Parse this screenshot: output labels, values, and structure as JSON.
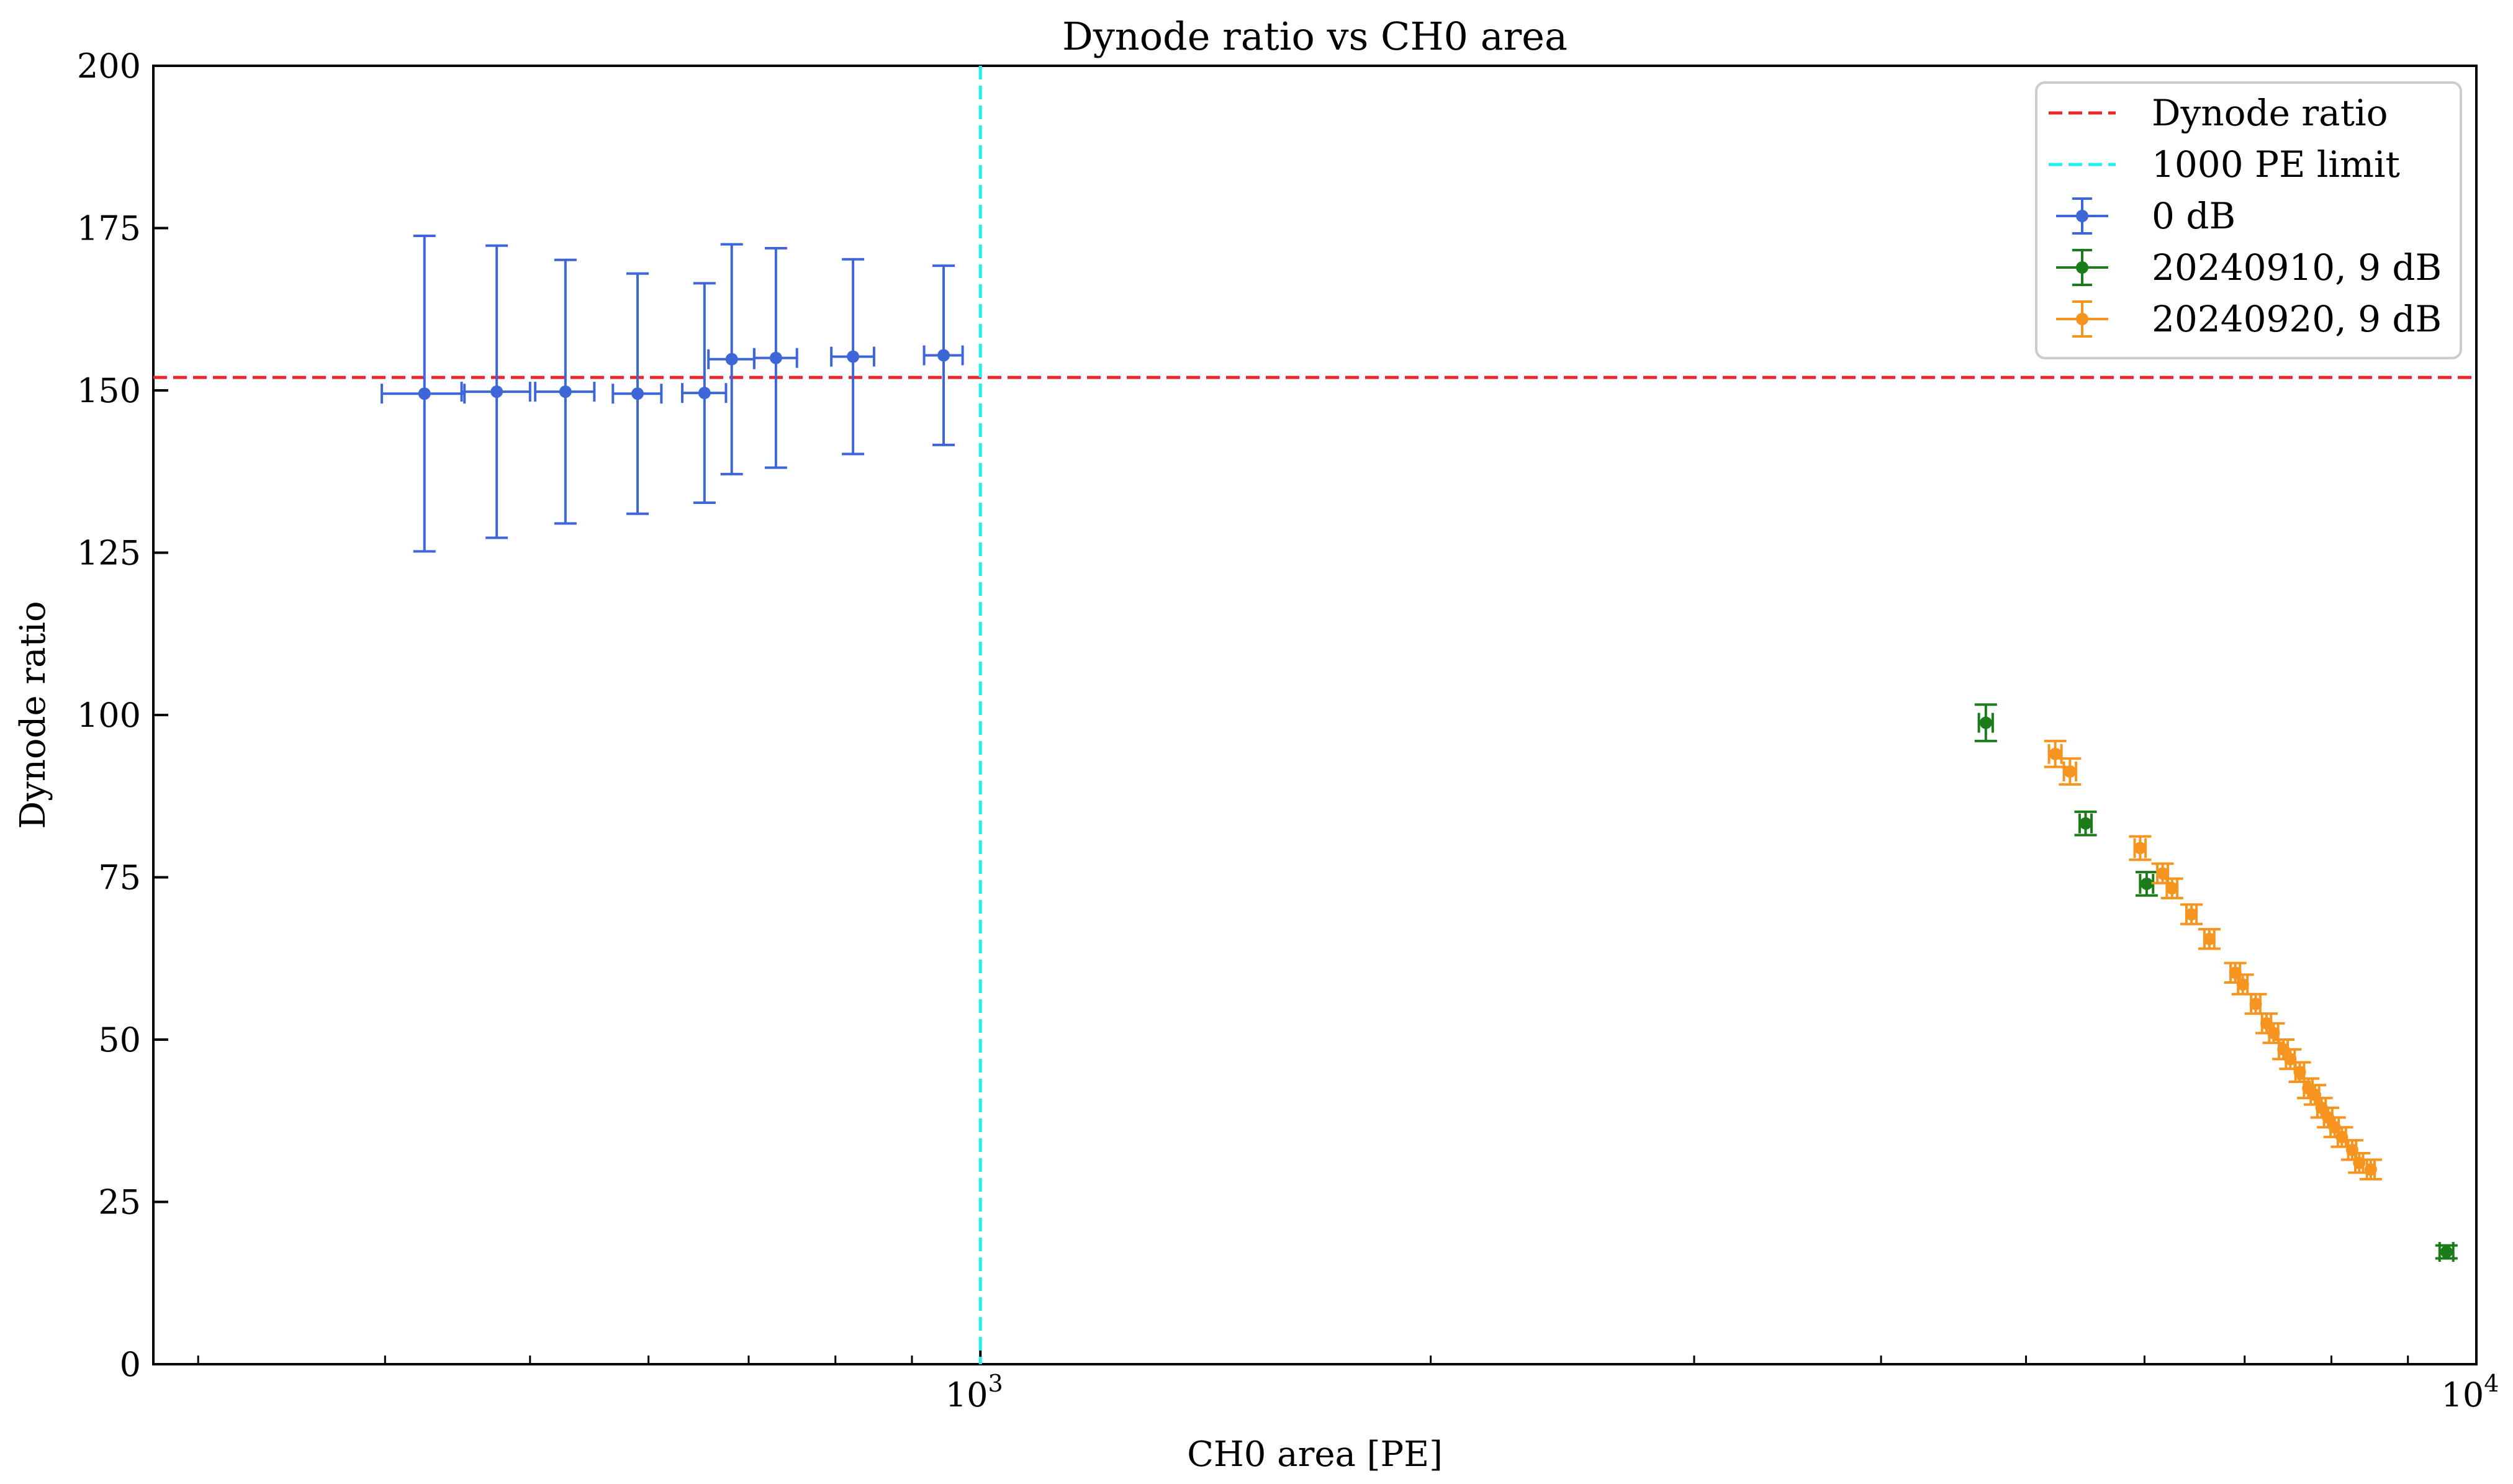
{
  "chart_data": {
    "type": "scatter",
    "title": "Dynode ratio vs CH0 area",
    "xlabel": "CH0 area [PE]",
    "ylabel": "Dynode ratio",
    "xscale": "log",
    "xlim": [
      280,
      10000
    ],
    "ylim": [
      0,
      200
    ],
    "yticks": [
      0,
      25,
      50,
      75,
      100,
      125,
      150,
      175,
      200
    ],
    "xticks_major": [
      {
        "value": 1000,
        "base": "10",
        "exp": "3"
      },
      {
        "value": 10000,
        "base": "10",
        "exp": "4"
      }
    ],
    "xticks_minor": [
      300,
      400,
      500,
      600,
      700,
      800,
      900,
      2000,
      3000,
      4000,
      5000,
      6000,
      7000,
      8000,
      9000
    ],
    "grid": false,
    "legend_position": "top-right",
    "reference_lines": [
      {
        "name": "Dynode ratio",
        "orientation": "horizontal",
        "value": 152,
        "color": "#e8262b",
        "style": "dashed"
      },
      {
        "name": "1000 PE limit",
        "orientation": "vertical",
        "value": 1000,
        "color": "#22f0f0",
        "style": "dashed"
      }
    ],
    "series": [
      {
        "name": "0 dB",
        "color": "#3d66d9",
        "points": [
          {
            "x": 425,
            "y": 149.5,
            "xerr": 27,
            "yerr": 24.3
          },
          {
            "x": 475,
            "y": 149.8,
            "xerr": 25,
            "yerr": 22.5
          },
          {
            "x": 528,
            "y": 149.8,
            "xerr": 24,
            "yerr": 20.3
          },
          {
            "x": 590,
            "y": 149.5,
            "xerr": 22,
            "yerr": 18.5
          },
          {
            "x": 654,
            "y": 149.6,
            "xerr": 22,
            "yerr": 16.9
          },
          {
            "x": 682,
            "y": 154.8,
            "xerr": 24,
            "yerr": 17.7
          },
          {
            "x": 730,
            "y": 155.0,
            "xerr": 24,
            "yerr": 16.9
          },
          {
            "x": 822,
            "y": 155.2,
            "xerr": 27,
            "yerr": 15.0
          },
          {
            "x": 945,
            "y": 155.4,
            "xerr": 28,
            "yerr": 13.8
          }
        ]
      },
      {
        "name": "20240910, 9 dB",
        "color": "#1a7d1a",
        "points": [
          {
            "x": 4700,
            "y": 98.8,
            "xerr": 50,
            "yerr": 2.8
          },
          {
            "x": 5480,
            "y": 83.3,
            "xerr": 50,
            "yerr": 1.8
          },
          {
            "x": 6020,
            "y": 74.0,
            "xerr": 60,
            "yerr": 1.8
          },
          {
            "x": 9550,
            "y": 17.3,
            "xerr": 100,
            "yerr": 1.0
          }
        ]
      },
      {
        "name": "20240920, 9 dB",
        "color": "#f5951f",
        "points": [
          {
            "x": 5230,
            "y": 94.0,
            "xerr": 50,
            "yerr": 2.0
          },
          {
            "x": 5350,
            "y": 91.3,
            "xerr": 50,
            "yerr": 2.0
          },
          {
            "x": 5960,
            "y": 79.5,
            "xerr": 50,
            "yerr": 1.8
          },
          {
            "x": 6170,
            "y": 75.6,
            "xerr": 50,
            "yerr": 1.5
          },
          {
            "x": 6260,
            "y": 73.3,
            "xerr": 50,
            "yerr": 1.5
          },
          {
            "x": 6450,
            "y": 69.3,
            "xerr": 50,
            "yerr": 1.5
          },
          {
            "x": 6630,
            "y": 65.5,
            "xerr": 50,
            "yerr": 1.5
          },
          {
            "x": 6900,
            "y": 60.3,
            "xerr": 50,
            "yerr": 1.5
          },
          {
            "x": 6980,
            "y": 58.5,
            "xerr": 50,
            "yerr": 1.5
          },
          {
            "x": 7120,
            "y": 55.5,
            "xerr": 50,
            "yerr": 1.5
          },
          {
            "x": 7240,
            "y": 52.5,
            "xerr": 50,
            "yerr": 1.5
          },
          {
            "x": 7320,
            "y": 51.0,
            "xerr": 50,
            "yerr": 1.5
          },
          {
            "x": 7430,
            "y": 48.5,
            "xerr": 50,
            "yerr": 1.5
          },
          {
            "x": 7510,
            "y": 47.0,
            "xerr": 50,
            "yerr": 1.5
          },
          {
            "x": 7620,
            "y": 45.0,
            "xerr": 50,
            "yerr": 1.5
          },
          {
            "x": 7720,
            "y": 42.5,
            "xerr": 50,
            "yerr": 1.5
          },
          {
            "x": 7800,
            "y": 41.5,
            "xerr": 50,
            "yerr": 1.5
          },
          {
            "x": 7880,
            "y": 39.5,
            "xerr": 50,
            "yerr": 1.5
          },
          {
            "x": 7960,
            "y": 38.0,
            "xerr": 50,
            "yerr": 1.5
          },
          {
            "x": 8040,
            "y": 36.5,
            "xerr": 50,
            "yerr": 1.5
          },
          {
            "x": 8130,
            "y": 35.0,
            "xerr": 50,
            "yerr": 1.5
          },
          {
            "x": 8260,
            "y": 33.0,
            "xerr": 50,
            "yerr": 1.5
          },
          {
            "x": 8350,
            "y": 31.0,
            "xerr": 50,
            "yerr": 1.5
          },
          {
            "x": 8500,
            "y": 30.0,
            "xerr": 50,
            "yerr": 1.5
          }
        ]
      }
    ]
  }
}
